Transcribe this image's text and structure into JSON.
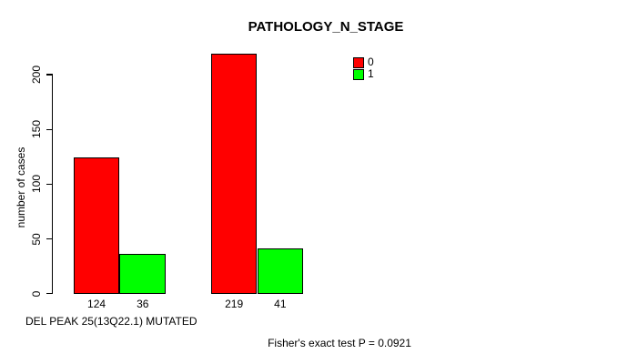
{
  "chart_data": {
    "type": "bar",
    "title": "PATHOLOGY_N_STAGE",
    "ylabel": "number of cases",
    "xlabel": "DEL PEAK 25(13Q22.1) MUTATED",
    "annotation": "Fisher's exact test P = 0.0921",
    "ylim": [
      0,
      220
    ],
    "yticks": [
      0,
      50,
      100,
      150,
      200
    ],
    "grid": false,
    "legend_position": "top-right",
    "categories": [
      "",
      ""
    ],
    "series": [
      {
        "name": "0",
        "color": "#ff0000",
        "values": [
          124,
          219
        ]
      },
      {
        "name": "1",
        "color": "#00ff00",
        "values": [
          36,
          41
        ]
      }
    ],
    "legend": [
      {
        "label": "0",
        "color": "#ff0000"
      },
      {
        "label": "1",
        "color": "#00ff00"
      }
    ],
    "colors": {
      "background": "#ffffff",
      "axis": "#000000",
      "bar_border": "#000000",
      "text": "#000000"
    }
  }
}
